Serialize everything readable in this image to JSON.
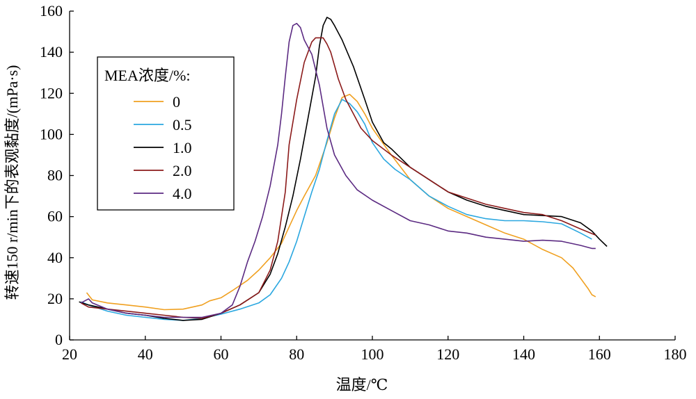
{
  "chart_data": {
    "type": "line",
    "title": "",
    "xlabel": "温度/℃",
    "ylabel": "转速150 r/min下的表观黏度/(mPa·s)",
    "xlim": [
      20,
      180
    ],
    "ylim": [
      0,
      160
    ],
    "xticks": [
      "20",
      "40",
      "60",
      "80",
      "100",
      "120",
      "140",
      "160",
      "180"
    ],
    "yticks": [
      "0",
      "20",
      "40",
      "60",
      "80",
      "100",
      "120",
      "140",
      "160"
    ],
    "grid": false,
    "legend": {
      "title": "MEA浓度/%:",
      "placement": "top-left"
    },
    "series": [
      {
        "name": "0",
        "color": "#F0A020",
        "points": [
          [
            24.5,
            23
          ],
          [
            26,
            19.5
          ],
          [
            30,
            18
          ],
          [
            35,
            17
          ],
          [
            40,
            16
          ],
          [
            45,
            14.7
          ],
          [
            50,
            15
          ],
          [
            55,
            17
          ],
          [
            57,
            19
          ],
          [
            60,
            20.5
          ],
          [
            63,
            24
          ],
          [
            67,
            29
          ],
          [
            70,
            34
          ],
          [
            73,
            40
          ],
          [
            76,
            47
          ],
          [
            78,
            55
          ],
          [
            80,
            63
          ],
          [
            82,
            70
          ],
          [
            85,
            80
          ],
          [
            88,
            96
          ],
          [
            90,
            108
          ],
          [
            92,
            118
          ],
          [
            94,
            119.5
          ],
          [
            96,
            116
          ],
          [
            98,
            110
          ],
          [
            100,
            103
          ],
          [
            105,
            90
          ],
          [
            110,
            78
          ],
          [
            115,
            70
          ],
          [
            120,
            64
          ],
          [
            125,
            60
          ],
          [
            130,
            56
          ],
          [
            135,
            52
          ],
          [
            140,
            49
          ],
          [
            145,
            44
          ],
          [
            150,
            40
          ],
          [
            153,
            35
          ],
          [
            155,
            30
          ],
          [
            157,
            25
          ],
          [
            158,
            22
          ],
          [
            159,
            21
          ]
        ]
      },
      {
        "name": "0.5",
        "color": "#2AA7E0",
        "points": [
          [
            23,
            18.5
          ],
          [
            25,
            17
          ],
          [
            30,
            14
          ],
          [
            35,
            12
          ],
          [
            40,
            11
          ],
          [
            45,
            10
          ],
          [
            50,
            9.5
          ],
          [
            55,
            10.5
          ],
          [
            60,
            12.5
          ],
          [
            65,
            15
          ],
          [
            70,
            18
          ],
          [
            73,
            22
          ],
          [
            76,
            30
          ],
          [
            78,
            38
          ],
          [
            80,
            48
          ],
          [
            82,
            60
          ],
          [
            84,
            72
          ],
          [
            86,
            83
          ],
          [
            88,
            97
          ],
          [
            90,
            110
          ],
          [
            92,
            117
          ],
          [
            94,
            115
          ],
          [
            96,
            111
          ],
          [
            98,
            105
          ],
          [
            100,
            96
          ],
          [
            103,
            88
          ],
          [
            106,
            83
          ],
          [
            110,
            78
          ],
          [
            115,
            70
          ],
          [
            120,
            65
          ],
          [
            125,
            61
          ],
          [
            130,
            59
          ],
          [
            135,
            58
          ],
          [
            140,
            58
          ],
          [
            145,
            57.5
          ],
          [
            150,
            56.5
          ],
          [
            155,
            52
          ],
          [
            158,
            49
          ]
        ]
      },
      {
        "name": "1.0",
        "color": "#000000",
        "points": [
          [
            22.5,
            18.5
          ],
          [
            25,
            17
          ],
          [
            30,
            15
          ],
          [
            35,
            13
          ],
          [
            40,
            12
          ],
          [
            45,
            10.5
          ],
          [
            50,
            9.5
          ],
          [
            55,
            10
          ],
          [
            60,
            13
          ],
          [
            65,
            17
          ],
          [
            70,
            23
          ],
          [
            73,
            32
          ],
          [
            75,
            42
          ],
          [
            77,
            55
          ],
          [
            79,
            70
          ],
          [
            81,
            88
          ],
          [
            83,
            108
          ],
          [
            85,
            128
          ],
          [
            86,
            143
          ],
          [
            87,
            153
          ],
          [
            88,
            157
          ],
          [
            89,
            156
          ],
          [
            90,
            153
          ],
          [
            92,
            146
          ],
          [
            95,
            133
          ],
          [
            98,
            117
          ],
          [
            100,
            106
          ],
          [
            103,
            96
          ],
          [
            105,
            93
          ],
          [
            110,
            84
          ],
          [
            115,
            78
          ],
          [
            120,
            72
          ],
          [
            125,
            68
          ],
          [
            130,
            65
          ],
          [
            135,
            63
          ],
          [
            140,
            61
          ],
          [
            145,
            60.5
          ],
          [
            150,
            60
          ],
          [
            155,
            57
          ],
          [
            158,
            53
          ],
          [
            160,
            49
          ],
          [
            162,
            45.5
          ]
        ]
      },
      {
        "name": "2.0",
        "color": "#8B1A1A",
        "points": [
          [
            23,
            18
          ],
          [
            25,
            16
          ],
          [
            30,
            15
          ],
          [
            35,
            14
          ],
          [
            40,
            13
          ],
          [
            45,
            12
          ],
          [
            50,
            11
          ],
          [
            55,
            10.5
          ],
          [
            60,
            13
          ],
          [
            65,
            17
          ],
          [
            70,
            23
          ],
          [
            73,
            34
          ],
          [
            75,
            48
          ],
          [
            77,
            72
          ],
          [
            78,
            95
          ],
          [
            80,
            117
          ],
          [
            82,
            135
          ],
          [
            84,
            145
          ],
          [
            85,
            147
          ],
          [
            87,
            147
          ],
          [
            88,
            144
          ],
          [
            89,
            140
          ],
          [
            91,
            127
          ],
          [
            93,
            117
          ],
          [
            95,
            110
          ],
          [
            97,
            103
          ],
          [
            100,
            97
          ],
          [
            105,
            90
          ],
          [
            110,
            84
          ],
          [
            115,
            78
          ],
          [
            120,
            72
          ],
          [
            125,
            69
          ],
          [
            130,
            66
          ],
          [
            135,
            64
          ],
          [
            140,
            62
          ],
          [
            145,
            61
          ],
          [
            150,
            58
          ],
          [
            155,
            54
          ],
          [
            159,
            51
          ]
        ]
      },
      {
        "name": "4.0",
        "color": "#5B2A82",
        "points": [
          [
            23,
            18
          ],
          [
            25,
            20
          ],
          [
            26,
            18
          ],
          [
            30,
            15
          ],
          [
            35,
            13
          ],
          [
            40,
            12
          ],
          [
            45,
            11
          ],
          [
            50,
            11
          ],
          [
            55,
            11
          ],
          [
            60,
            13
          ],
          [
            63,
            17
          ],
          [
            65,
            26
          ],
          [
            67,
            38
          ],
          [
            69,
            48
          ],
          [
            71,
            60
          ],
          [
            73,
            75
          ],
          [
            75,
            95
          ],
          [
            76,
            110
          ],
          [
            77,
            128
          ],
          [
            78,
            145
          ],
          [
            79,
            153
          ],
          [
            80,
            154
          ],
          [
            81,
            152
          ],
          [
            82,
            146
          ],
          [
            84,
            139
          ],
          [
            86,
            124
          ],
          [
            88,
            103
          ],
          [
            90,
            90
          ],
          [
            93,
            80
          ],
          [
            96,
            73
          ],
          [
            100,
            68
          ],
          [
            105,
            63
          ],
          [
            110,
            58
          ],
          [
            115,
            56
          ],
          [
            120,
            53
          ],
          [
            125,
            52
          ],
          [
            130,
            50
          ],
          [
            135,
            49
          ],
          [
            140,
            48
          ],
          [
            145,
            48.5
          ],
          [
            150,
            48
          ],
          [
            155,
            46
          ],
          [
            158,
            44.5
          ],
          [
            159,
            44.5
          ]
        ]
      }
    ]
  }
}
